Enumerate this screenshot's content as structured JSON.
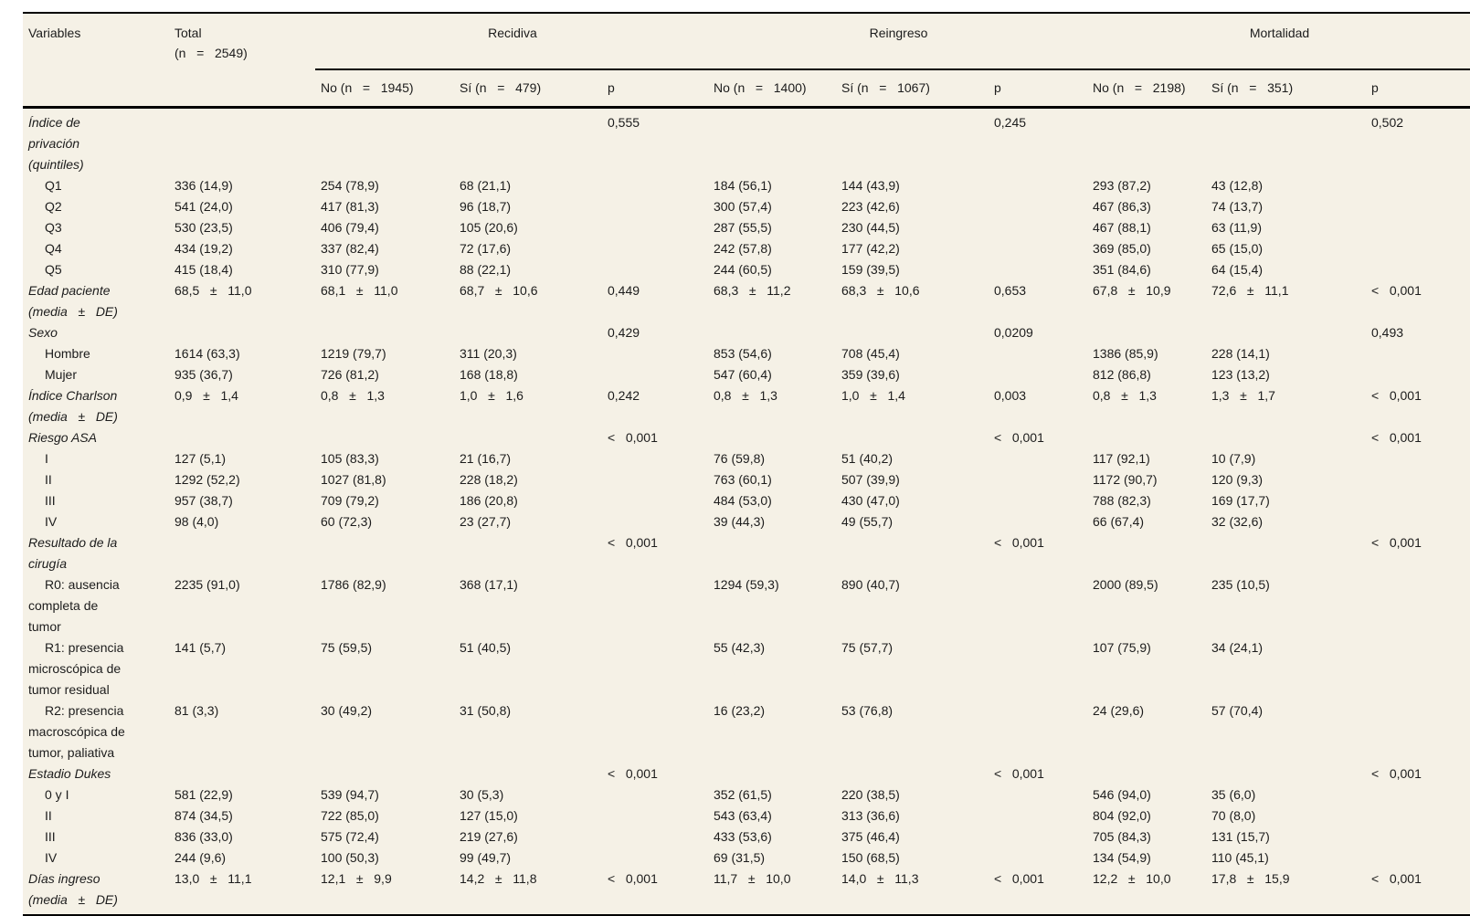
{
  "colors": {
    "table_background": "#f5f1e6",
    "rule_color": "#000000",
    "text_color": "#1c1c1c",
    "page_background": "#ffffff"
  },
  "table": {
    "header": {
      "variables": "Variables",
      "total": "Total\n(n   =   2549)",
      "groups": [
        {
          "label": "Recidiva",
          "no": "No (n   =   1945)",
          "si": "Sí (n   =   479)",
          "p": "p"
        },
        {
          "label": "Reingreso",
          "no": "No (n   =   1400)",
          "si": "Sí (n   =   1067)",
          "p": "p"
        },
        {
          "label": "Mortalidad",
          "no": "No (n   =   2198)",
          "si": "Sí (n   =   351)",
          "p": "p"
        }
      ]
    },
    "column_keys": [
      "total",
      "recidiva-no",
      "recidiva-si",
      "recidiva-p",
      "reingreso-no",
      "reingreso-si",
      "reingreso-p",
      "mortalidad-no",
      "mortalidad-si",
      "mortalidad-p"
    ],
    "rows": [
      {
        "label": "Índice de\nprivación\n(quintiles)",
        "style": "section",
        "cells": [
          "",
          "",
          "",
          "0,555",
          "",
          "",
          "0,245",
          "",
          "",
          "0,502"
        ]
      },
      {
        "label": "Q1",
        "style": "item",
        "cells": [
          "336 (14,9)",
          "254 (78,9)",
          "68 (21,1)",
          "",
          "184 (56,1)",
          "144 (43,9)",
          "",
          "293 (87,2)",
          "43 (12,8)",
          ""
        ]
      },
      {
        "label": "Q2",
        "style": "item",
        "cells": [
          "541 (24,0)",
          "417 (81,3)",
          "96 (18,7)",
          "",
          "300 (57,4)",
          "223 (42,6)",
          "",
          "467 (86,3)",
          "74 (13,7)",
          ""
        ]
      },
      {
        "label": "Q3",
        "style": "item",
        "cells": [
          "530 (23,5)",
          "406 (79,4)",
          "105 (20,6)",
          "",
          "287 (55,5)",
          "230 (44,5)",
          "",
          "467 (88,1)",
          "63 (11,9)",
          ""
        ]
      },
      {
        "label": "Q4",
        "style": "item",
        "cells": [
          "434 (19,2)",
          "337 (82,4)",
          "72 (17,6)",
          "",
          "242 (57,8)",
          "177 (42,2)",
          "",
          "369 (85,0)",
          "65 (15,0)",
          ""
        ]
      },
      {
        "label": "Q5",
        "style": "item",
        "cells": [
          "415 (18,4)",
          "310 (77,9)",
          "88 (22,1)",
          "",
          "244 (60,5)",
          "159 (39,5)",
          "",
          "351 (84,6)",
          "64 (15,4)",
          ""
        ]
      },
      {
        "label": "Edad paciente\n(media   ±   DE)",
        "style": "section",
        "cells": [
          "68,5   ±   11,0",
          "68,1   ±   11,0",
          "68,7   ±   10,6",
          "0,449",
          "68,3   ±   11,2",
          "68,3   ±   10,6",
          "0,653",
          "67,8   ±   10,9",
          "72,6   ±   11,1",
          "<   0,001"
        ]
      },
      {
        "label": "Sexo",
        "style": "section",
        "cells": [
          "",
          "",
          "",
          "0,429",
          "",
          "",
          "0,0209",
          "",
          "",
          "0,493"
        ]
      },
      {
        "label": "Hombre",
        "style": "item",
        "cells": [
          "1614 (63,3)",
          "1219 (79,7)",
          "311 (20,3)",
          "",
          "853 (54,6)",
          "708 (45,4)",
          "",
          "1386 (85,9)",
          "228 (14,1)",
          ""
        ]
      },
      {
        "label": "Mujer",
        "style": "item",
        "cells": [
          "935 (36,7)",
          "726 (81,2)",
          "168 (18,8)",
          "",
          "547 (60,4)",
          "359 (39,6)",
          "",
          "812 (86,8)",
          "123 (13,2)",
          ""
        ]
      },
      {
        "label": "Índice Charlson\n(media   ±   DE)",
        "style": "section",
        "cells": [
          "0,9   ±   1,4",
          "0,8   ±   1,3",
          "1,0   ±   1,6",
          "0,242",
          "0,8   ±   1,3",
          "1,0   ±   1,4",
          "0,003",
          "0,8   ±   1,3",
          "1,3   ±   1,7",
          "<   0,001"
        ]
      },
      {
        "label": "Riesgo ASA",
        "style": "section",
        "cells": [
          "",
          "",
          "",
          "<   0,001",
          "",
          "",
          "<   0,001",
          "",
          "",
          "<   0,001"
        ]
      },
      {
        "label": "I",
        "style": "item",
        "cells": [
          "127 (5,1)",
          "105 (83,3)",
          "21 (16,7)",
          "",
          "76 (59,8)",
          "51 (40,2)",
          "",
          "117 (92,1)",
          "10 (7,9)",
          ""
        ]
      },
      {
        "label": "II",
        "style": "item",
        "cells": [
          "1292 (52,2)",
          "1027 (81,8)",
          "228 (18,2)",
          "",
          "763 (60,1)",
          "507 (39,9)",
          "",
          "1172 (90,7)",
          "120 (9,3)",
          ""
        ]
      },
      {
        "label": "III",
        "style": "item",
        "cells": [
          "957 (38,7)",
          "709 (79,2)",
          "186 (20,8)",
          "",
          "484 (53,0)",
          "430 (47,0)",
          "",
          "788 (82,3)",
          "169 (17,7)",
          ""
        ]
      },
      {
        "label": "IV",
        "style": "item",
        "cells": [
          "98 (4,0)",
          "60 (72,3)",
          "23 (27,7)",
          "",
          "39 (44,3)",
          "49 (55,7)",
          "",
          "66 (67,4)",
          "32 (32,6)",
          ""
        ]
      },
      {
        "label": "Resultado de la\ncirugía",
        "style": "section",
        "cells": [
          "",
          "",
          "",
          "<   0,001",
          "",
          "",
          "<   0,001",
          "",
          "",
          "<   0,001"
        ]
      },
      {
        "label": "R0: ausencia\ncompleta de\ntumor",
        "style": "item",
        "cells": [
          "2235 (91,0)",
          "1786 (82,9)",
          "368 (17,1)",
          "",
          "1294 (59,3)",
          "890 (40,7)",
          "",
          "2000 (89,5)",
          "235 (10,5)",
          ""
        ]
      },
      {
        "label": "R1: presencia\nmicroscópica de\ntumor residual",
        "style": "item",
        "cells": [
          "141 (5,7)",
          "75 (59,5)",
          "51 (40,5)",
          "",
          "55 (42,3)",
          "75 (57,7)",
          "",
          "107 (75,9)",
          "34 (24,1)",
          ""
        ]
      },
      {
        "label": "R2: presencia\nmacroscópica de\ntumor, paliativa",
        "style": "item",
        "cells": [
          "81 (3,3)",
          "30 (49,2)",
          "31 (50,8)",
          "",
          "16 (23,2)",
          "53 (76,8)",
          "",
          "24 (29,6)",
          "57 (70,4)",
          ""
        ]
      },
      {
        "label": "Estadio Dukes",
        "style": "section",
        "cells": [
          "",
          "",
          "",
          "<   0,001",
          "",
          "",
          "<   0,001",
          "",
          "",
          "<   0,001"
        ]
      },
      {
        "label": "0 y I",
        "style": "item",
        "cells": [
          "581 (22,9)",
          "539 (94,7)",
          "30 (5,3)",
          "",
          "352 (61,5)",
          "220 (38,5)",
          "",
          "546 (94,0)",
          "35 (6,0)",
          ""
        ]
      },
      {
        "label": "II",
        "style": "item",
        "cells": [
          "874 (34,5)",
          "722 (85,0)",
          "127 (15,0)",
          "",
          "543 (63,4)",
          "313 (36,6)",
          "",
          "804 (92,0)",
          "70 (8,0)",
          ""
        ]
      },
      {
        "label": "III",
        "style": "item",
        "cells": [
          "836 (33,0)",
          "575 (72,4)",
          "219 (27,6)",
          "",
          "433 (53,6)",
          "375 (46,4)",
          "",
          "705 (84,3)",
          "131 (15,7)",
          ""
        ]
      },
      {
        "label": "IV",
        "style": "item",
        "cells": [
          "244 (9,6)",
          "100 (50,3)",
          "99 (49,7)",
          "",
          "69 (31,5)",
          "150 (68,5)",
          "",
          "134 (54,9)",
          "110 (45,1)",
          ""
        ]
      },
      {
        "label": "Días ingreso\n(media   ±   DE)",
        "style": "section",
        "cells": [
          "13,0   ±   11,1",
          "12,1   ±   9,9",
          "14,2   ±   11,8",
          "<   0,001",
          "11,7   ±   10,0",
          "14,0   ±   11,3",
          "<   0,001",
          "12,2   ±   10,0",
          "17,8   ±   15,9",
          "<   0,001"
        ]
      }
    ]
  }
}
